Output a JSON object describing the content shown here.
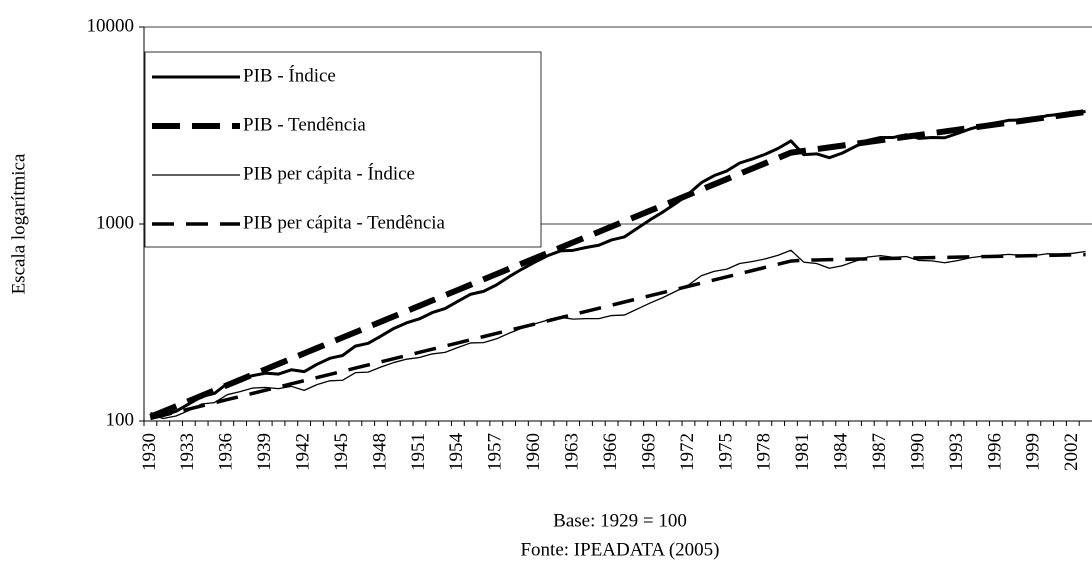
{
  "chart_data": {
    "type": "line",
    "y_label": "Escala logarítmica",
    "x_label": "Base: 1929 = 100",
    "note": "Fonte: IPEADATA (2005)",
    "log_scale": true,
    "ylim": [
      100,
      10000
    ],
    "yticks": [
      100,
      1000,
      10000
    ],
    "grid": true,
    "legend": "upper left",
    "categories": [
      "1930",
      null,
      null,
      "1933",
      null,
      null,
      "1936",
      null,
      null,
      "1939",
      null,
      null,
      "1942",
      null,
      null,
      "1945",
      null,
      null,
      "1948",
      null,
      null,
      "1951",
      null,
      null,
      "1954",
      null,
      null,
      "1957",
      null,
      null,
      "1960",
      null,
      null,
      "1963",
      null,
      null,
      "1966",
      null,
      null,
      "1969",
      null,
      null,
      "1972",
      null,
      null,
      "1975",
      null,
      null,
      "1978",
      null,
      null,
      "1981",
      null,
      null,
      "1984",
      null,
      null,
      "1987",
      null,
      null,
      "1990",
      null,
      null,
      "1993",
      null,
      null,
      "1996",
      null,
      null,
      "1999",
      null,
      null,
      "2002",
      null
    ],
    "series": [
      {
        "name": "PIB - Índice",
        "color": "#000000",
        "width": 3,
        "dash": "none",
        "values": [
          109,
          107,
          112,
          122,
          133,
          138,
          155,
          163,
          170,
          175,
          173,
          182,
          178,
          194,
          208,
          215,
          240,
          248,
          270,
          295,
          315,
          330,
          355,
          372,
          405,
          440,
          455,
          490,
          540,
          590,
          640,
          690,
          730,
          735,
          760,
          780,
          830,
          860,
          950,
          1050,
          1150,
          1270,
          1420,
          1620,
          1760,
          1860,
          2040,
          2140,
          2260,
          2420,
          2640,
          2250,
          2270,
          2170,
          2290,
          2470,
          2660,
          2750,
          2750,
          2840,
          2720,
          2750,
          2740,
          2880,
          3040,
          3170,
          3260,
          3360,
          3370,
          3400,
          3550,
          3600,
          3700,
          3720
        ]
      },
      {
        "name": "PIB - Tendência",
        "color": "#000000",
        "width": 6,
        "dash": "28 12",
        "values": [
          105,
          111.7,
          118.8,
          126.4,
          134.5,
          143.0,
          152.1,
          161.8,
          172.1,
          183.1,
          194.8,
          207.2,
          220.4,
          234.5,
          249.4,
          265.3,
          282.2,
          300.2,
          319.3,
          339.7,
          361.3,
          384.3,
          408.8,
          434.8,
          462.5,
          492.0,
          523.4,
          556.7,
          592.2,
          629.9,
          670.0,
          712.7,
          758.1,
          806.4,
          857.8,
          912.4,
          970.5,
          1032,
          1098,
          1168,
          1242,
          1321,
          1405,
          1495,
          1590,
          1691,
          1799,
          1914,
          2035,
          2165,
          2303,
          2350,
          2399,
          2449,
          2500,
          2552,
          2606,
          2660,
          2716,
          2772,
          2830,
          2889,
          2950,
          3011,
          3074,
          3138,
          3204,
          3271,
          3339,
          3409,
          3480,
          3552,
          3626,
          3702
        ]
      },
      {
        "name": "PIB per cápita - Índice",
        "color": "#000000",
        "width": 1.3,
        "dash": "none",
        "values": [
          108,
          103,
          106,
          113,
          122,
          124,
          136,
          141,
          147,
          148,
          146,
          150,
          143,
          153,
          160,
          161,
          176,
          177,
          188,
          198,
          206,
          210,
          219,
          223,
          236,
          249,
          250,
          261,
          279,
          296,
          311,
          325,
          336,
          329,
          331,
          331,
          343,
          345,
          370,
          397,
          423,
          455,
          490,
          546,
          575,
          590,
          630,
          645,
          665,
          694,
          736,
          640,
          630,
          596,
          614,
          647,
          680,
          691,
          677,
          684,
          653,
          650,
          636,
          652,
          674,
          687,
          693,
          701,
          693,
          691,
          706,
          705,
          710,
          725
        ]
      },
      {
        "name": "PIB per cápita - Tendência",
        "color": "#000000",
        "width": 3.5,
        "dash": "22 12",
        "values": [
          103,
          106.9,
          110.9,
          115.0,
          119.3,
          123.8,
          128.4,
          133.2,
          138.2,
          143.4,
          148.8,
          154.4,
          160.2,
          166.2,
          172.4,
          178.9,
          185.6,
          192.5,
          199.8,
          207.2,
          215.0,
          223.1,
          231.4,
          240.1,
          249.1,
          258.5,
          268.1,
          278.2,
          288.6,
          299.4,
          310.6,
          322.3,
          334.4,
          346.9,
          359.9,
          373.4,
          387.4,
          401.9,
          417.0,
          432.6,
          448.8,
          465.6,
          483.1,
          501.2,
          520.0,
          539.5,
          559.7,
          580.7,
          602.4,
          625.0,
          648.5,
          655,
          657,
          659,
          661,
          663,
          665,
          667,
          669,
          671,
          673,
          675,
          677,
          679,
          681,
          683,
          685,
          687,
          689,
          691,
          693,
          695,
          697,
          699
        ]
      }
    ]
  }
}
